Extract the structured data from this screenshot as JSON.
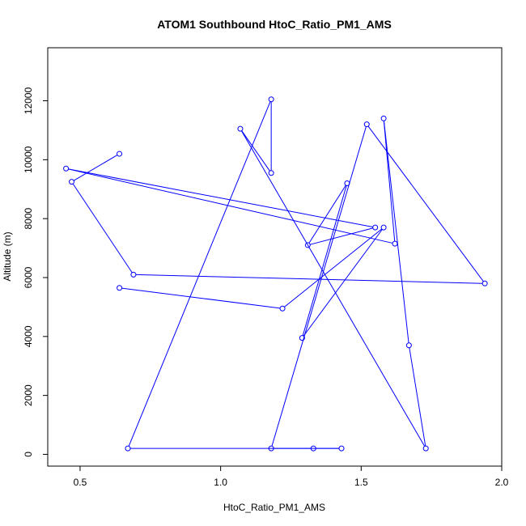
{
  "chart_data": {
    "type": "line",
    "title": "ATOM1 Southbound HtoC_Ratio_PM1_AMS",
    "xlabel": "HtoC_Ratio_PM1_AMS",
    "ylabel": "Altitude (m)",
    "xlim": [
      0.385,
      2.0
    ],
    "ylim": [
      -400,
      13800
    ],
    "xticks": [
      0.5,
      1.0,
      1.5,
      2.0
    ],
    "xtick_labels": [
      "0.5",
      "1.0",
      "1.5",
      "2.0"
    ],
    "yticks": [
      0,
      2000,
      4000,
      6000,
      8000,
      10000,
      12000
    ],
    "ytick_labels": [
      "0",
      "2000",
      "4000",
      "6000",
      "8000",
      "10000",
      "12000"
    ],
    "grid": false,
    "legend": "none",
    "color": "#0000ff",
    "series": [
      {
        "x": [
          0.64,
          0.47,
          0.69,
          1.94,
          1.52,
          1.18,
          1.43,
          1.33,
          0.67,
          1.18,
          1.18,
          1.07,
          1.73,
          1.67,
          1.58,
          1.62,
          0.45,
          1.55,
          1.31,
          1.45,
          1.29,
          1.58,
          1.22,
          0.64
        ],
        "y": [
          10200,
          9250,
          6100,
          5800,
          11200,
          200,
          200,
          200,
          200,
          12050,
          9550,
          11050,
          200,
          3700,
          11400,
          7150,
          9700,
          7700,
          7100,
          9200,
          3950,
          7700,
          4950,
          5650
        ]
      }
    ]
  }
}
